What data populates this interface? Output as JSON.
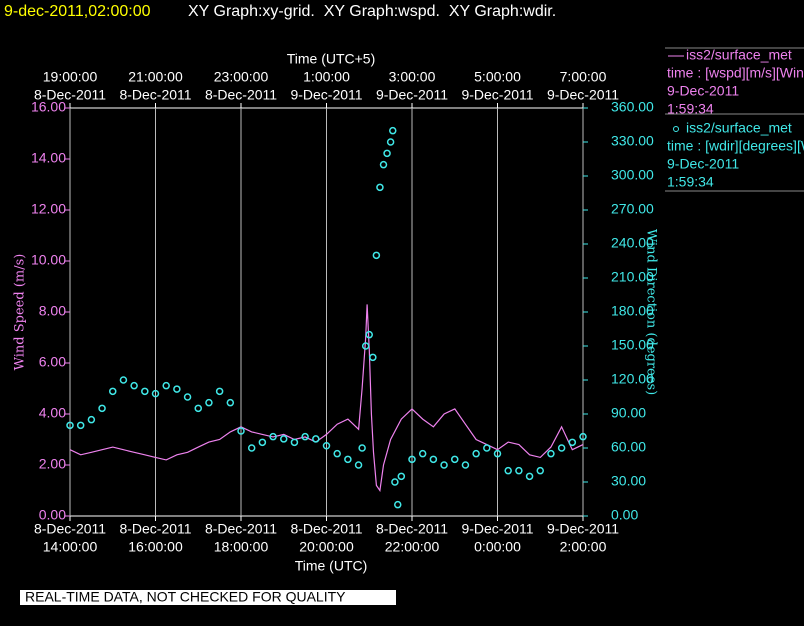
{
  "chart_data": {
    "type": "xy-time",
    "title": "9-dec-2011,02:00:00",
    "subtitle": "XY Graph:xy-grid.  XY Graph:wspd.  XY Graph:wdir.",
    "xlabel": "Time (UTC)",
    "x2label": "Time (UTC+5)",
    "ylabel": "Wind Speed (m/s)",
    "y2label": "Wind Direction (degrees)",
    "footer": "REAL-TIME DATA, NOT CHECKED FOR QUALITY",
    "grid": true,
    "xlim": [
      "2011-12-08T14:00",
      "2011-12-09T02:00"
    ],
    "xticks": [
      {
        "value": "2011-12-08T14:00",
        "label": [
          "8-Dec-2011",
          "14:00:00"
        ]
      },
      {
        "value": "2011-12-08T16:00",
        "label": [
          "8-Dec-2011",
          "16:00:00"
        ]
      },
      {
        "value": "2011-12-08T18:00",
        "label": [
          "8-Dec-2011",
          "18:00:00"
        ]
      },
      {
        "value": "2011-12-08T20:00",
        "label": [
          "8-Dec-2011",
          "20:00:00"
        ]
      },
      {
        "value": "2011-12-08T22:00",
        "label": [
          "8-Dec-2011",
          "22:00:00"
        ]
      },
      {
        "value": "2011-12-09T00:00",
        "label": [
          "9-Dec-2011",
          "0:00:00"
        ]
      },
      {
        "value": "2011-12-09T02:00",
        "label": [
          "9-Dec-2011",
          "2:00:00"
        ]
      }
    ],
    "x2ticks": [
      {
        "value": "2011-12-08T14:00",
        "label": [
          "19:00:00",
          "8-Dec-2011"
        ]
      },
      {
        "value": "2011-12-08T16:00",
        "label": [
          "21:00:00",
          "8-Dec-2011"
        ]
      },
      {
        "value": "2011-12-08T18:00",
        "label": [
          "23:00:00",
          "8-Dec-2011"
        ]
      },
      {
        "value": "2011-12-08T20:00",
        "label": [
          "1:00:00",
          "9-Dec-2011"
        ]
      },
      {
        "value": "2011-12-08T22:00",
        "label": [
          "3:00:00",
          "9-Dec-2011"
        ]
      },
      {
        "value": "2011-12-09T00:00",
        "label": [
          "5:00:00",
          "9-Dec-2011"
        ]
      },
      {
        "value": "2011-12-09T02:00",
        "label": [
          "7:00:00",
          "9-Dec-2011"
        ]
      }
    ],
    "ylim": [
      0,
      16
    ],
    "yticks": [
      {
        "value": 0,
        "label": "0.00"
      },
      {
        "value": 2,
        "label": "2.00"
      },
      {
        "value": 4,
        "label": "4.00"
      },
      {
        "value": 6,
        "label": "6.00"
      },
      {
        "value": 8,
        "label": "8.00"
      },
      {
        "value": 10,
        "label": "10.00"
      },
      {
        "value": 12,
        "label": "12.00"
      },
      {
        "value": 14,
        "label": "14.00"
      },
      {
        "value": 16,
        "label": "16.00"
      }
    ],
    "y2lim": [
      0,
      360
    ],
    "y2ticks": [
      {
        "value": 0,
        "label": "0.00"
      },
      {
        "value": 30,
        "label": "30.00"
      },
      {
        "value": 60,
        "label": "60.00"
      },
      {
        "value": 90,
        "label": "90.00"
      },
      {
        "value": 120,
        "label": "120.00"
      },
      {
        "value": 150,
        "label": "150.00"
      },
      {
        "value": 180,
        "label": "180.00"
      },
      {
        "value": 210,
        "label": "210.00"
      },
      {
        "value": 240,
        "label": "240.00"
      },
      {
        "value": 270,
        "label": "270.00"
      },
      {
        "value": 300,
        "label": "300.00"
      },
      {
        "value": 330,
        "label": "330.00"
      },
      {
        "value": 360,
        "label": "360.00"
      }
    ],
    "series": [
      {
        "name": "iss2/surface_met",
        "label": "time : [wspd][m/s][Wind",
        "date": "9-Dec-2011",
        "time": "1:59:34",
        "color": "#ee82ee",
        "mark": "line",
        "x": [
          "2011-12-08T14:00",
          "2011-12-08T14:15",
          "2011-12-08T14:30",
          "2011-12-08T14:45",
          "2011-12-08T15:00",
          "2011-12-08T15:15",
          "2011-12-08T15:30",
          "2011-12-08T15:45",
          "2011-12-08T16:00",
          "2011-12-08T16:15",
          "2011-12-08T16:30",
          "2011-12-08T16:45",
          "2011-12-08T17:00",
          "2011-12-08T17:15",
          "2011-12-08T17:30",
          "2011-12-08T17:45",
          "2011-12-08T18:00",
          "2011-12-08T18:15",
          "2011-12-08T18:30",
          "2011-12-08T18:45",
          "2011-12-08T19:00",
          "2011-12-08T19:15",
          "2011-12-08T19:30",
          "2011-12-08T19:45",
          "2011-12-08T20:00",
          "2011-12-08T20:15",
          "2011-12-08T20:30",
          "2011-12-08T20:45",
          "2011-12-08T20:50",
          "2011-12-08T20:55",
          "2011-12-08T20:57",
          "2011-12-08T21:00",
          "2011-12-08T21:03",
          "2011-12-08T21:06",
          "2011-12-08T21:10",
          "2011-12-08T21:15",
          "2011-12-08T21:20",
          "2011-12-08T21:30",
          "2011-12-08T21:45",
          "2011-12-08T22:00",
          "2011-12-08T22:15",
          "2011-12-08T22:30",
          "2011-12-08T22:45",
          "2011-12-08T23:00",
          "2011-12-08T23:15",
          "2011-12-08T23:30",
          "2011-12-08T23:45",
          "2011-12-09T00:00",
          "2011-12-09T00:15",
          "2011-12-09T00:30",
          "2011-12-09T00:45",
          "2011-12-09T01:00",
          "2011-12-09T01:15",
          "2011-12-09T01:30",
          "2011-12-09T01:45",
          "2011-12-09T02:00"
        ],
        "values": [
          2.6,
          2.4,
          2.5,
          2.6,
          2.7,
          2.6,
          2.5,
          2.4,
          2.3,
          2.2,
          2.4,
          2.5,
          2.7,
          2.9,
          3.0,
          3.3,
          3.5,
          3.3,
          3.2,
          3.1,
          3.2,
          3.0,
          3.1,
          2.9,
          3.2,
          3.6,
          3.8,
          3.4,
          5.0,
          7.0,
          8.3,
          6.5,
          4.0,
          2.5,
          1.2,
          1.0,
          2.0,
          3.0,
          3.8,
          4.2,
          3.8,
          3.5,
          4.0,
          4.2,
          3.6,
          3.0,
          2.8,
          2.6,
          2.9,
          2.8,
          2.4,
          2.3,
          2.7,
          3.5,
          2.6,
          2.8
        ]
      },
      {
        "name": "iss2/surface_met",
        "label": "time : [wdir][degrees][Wi",
        "date": "9-Dec-2011",
        "time": "1:59:34",
        "color": "#40e8e8",
        "mark": "circle",
        "axis": "y2",
        "x": [
          "2011-12-08T14:00",
          "2011-12-08T14:15",
          "2011-12-08T14:30",
          "2011-12-08T14:45",
          "2011-12-08T15:00",
          "2011-12-08T15:15",
          "2011-12-08T15:30",
          "2011-12-08T15:45",
          "2011-12-08T16:00",
          "2011-12-08T16:15",
          "2011-12-08T16:30",
          "2011-12-08T16:45",
          "2011-12-08T17:00",
          "2011-12-08T17:15",
          "2011-12-08T17:30",
          "2011-12-08T17:45",
          "2011-12-08T18:00",
          "2011-12-08T18:15",
          "2011-12-08T18:30",
          "2011-12-08T18:45",
          "2011-12-08T19:00",
          "2011-12-08T19:15",
          "2011-12-08T19:30",
          "2011-12-08T19:45",
          "2011-12-08T20:00",
          "2011-12-08T20:15",
          "2011-12-08T20:30",
          "2011-12-08T20:45",
          "2011-12-08T20:50",
          "2011-12-08T20:55",
          "2011-12-08T21:00",
          "2011-12-08T21:05",
          "2011-12-08T21:10",
          "2011-12-08T21:15",
          "2011-12-08T21:20",
          "2011-12-08T21:25",
          "2011-12-08T21:30",
          "2011-12-08T21:33",
          "2011-12-08T21:36",
          "2011-12-08T21:40",
          "2011-12-08T21:45",
          "2011-12-08T22:00",
          "2011-12-08T22:15",
          "2011-12-08T22:30",
          "2011-12-08T22:45",
          "2011-12-08T23:00",
          "2011-12-08T23:15",
          "2011-12-08T23:30",
          "2011-12-08T23:45",
          "2011-12-09T00:00",
          "2011-12-09T00:15",
          "2011-12-09T00:30",
          "2011-12-09T00:45",
          "2011-12-09T01:00",
          "2011-12-09T01:15",
          "2011-12-09T01:30",
          "2011-12-09T01:45",
          "2011-12-09T02:00"
        ],
        "values": [
          80,
          80,
          85,
          95,
          110,
          120,
          115,
          110,
          108,
          115,
          112,
          105,
          95,
          100,
          110,
          100,
          75,
          60,
          65,
          70,
          68,
          65,
          70,
          68,
          62,
          55,
          50,
          45,
          60,
          150,
          160,
          140,
          230,
          290,
          310,
          320,
          330,
          340,
          30,
          10,
          35,
          50,
          55,
          50,
          45,
          50,
          45,
          55,
          60,
          55,
          40,
          40,
          35,
          40,
          55,
          60,
          65,
          70
        ]
      }
    ]
  }
}
